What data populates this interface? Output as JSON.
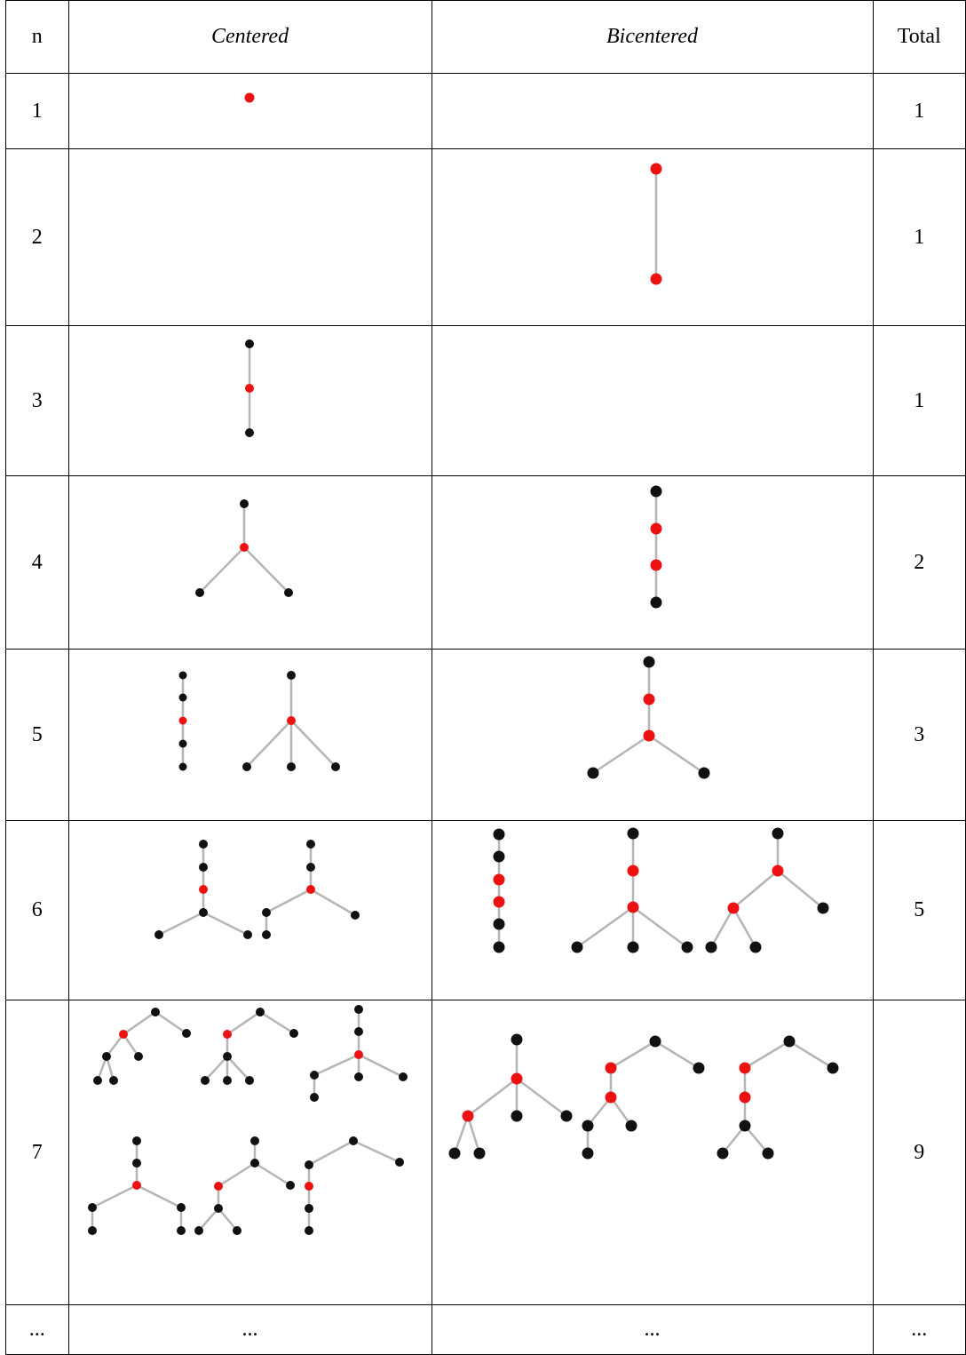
{
  "headers": {
    "n": "n",
    "centered": "Centered",
    "bicentered": "Bicentered",
    "total": "Total"
  },
  "rows": [
    {
      "n": "1",
      "total": "1"
    },
    {
      "n": "2",
      "total": "1"
    },
    {
      "n": "3",
      "total": "1"
    },
    {
      "n": "4",
      "total": "2"
    },
    {
      "n": "5",
      "total": "3"
    },
    {
      "n": "6",
      "total": "5"
    },
    {
      "n": "7",
      "total": "9"
    },
    {
      "n": "...",
      "total": "...",
      "centered": "...",
      "bicentered": "..."
    }
  ],
  "colors": {
    "center_node": "#ee1111",
    "other_node": "#111111",
    "edge": "#b5b5b5"
  }
}
